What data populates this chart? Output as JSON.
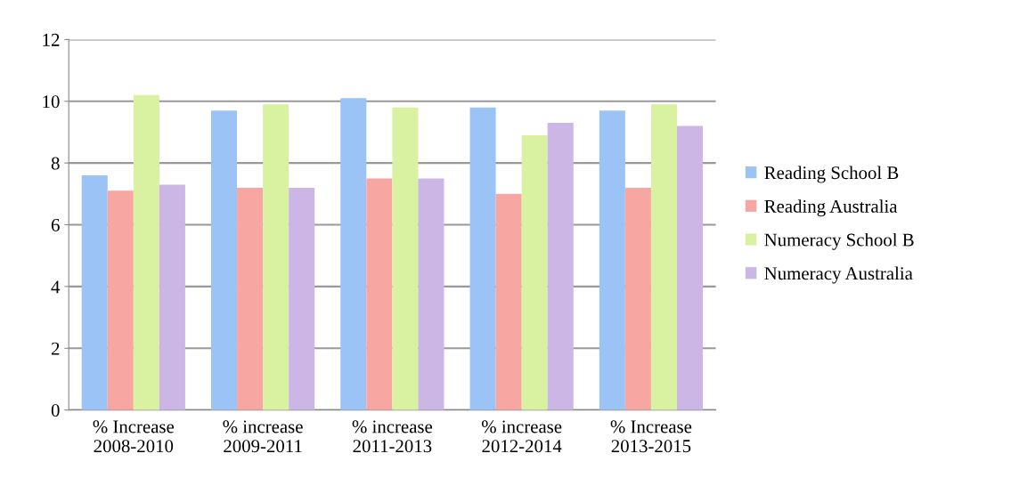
{
  "chart_data": {
    "type": "bar",
    "categories": [
      "% Increase\n2008-2010",
      "% increase\n2009-2011",
      "% increase\n2011-2013",
      "% increase\n2012-2014",
      "% Increase\n2013-2015"
    ],
    "series": [
      {
        "name": "Reading School B",
        "color": "#9cc3f5",
        "values": [
          7.6,
          9.7,
          10.1,
          9.8,
          9.7
        ]
      },
      {
        "name": "Reading Australia",
        "color": "#f7a6a2",
        "values": [
          7.1,
          7.2,
          7.5,
          7.0,
          7.2
        ]
      },
      {
        "name": "Numeracy School B",
        "color": "#d9f2a2",
        "values": [
          10.2,
          9.9,
          9.8,
          8.9,
          9.9
        ]
      },
      {
        "name": "Numeracy Australia",
        "color": "#cbb6e6",
        "values": [
          7.3,
          7.2,
          7.5,
          9.3,
          9.2
        ]
      }
    ],
    "ylim": [
      0,
      12
    ],
    "yticks": [
      0,
      2,
      4,
      6,
      8,
      10,
      12
    ],
    "grid": "y",
    "legend": "right"
  }
}
